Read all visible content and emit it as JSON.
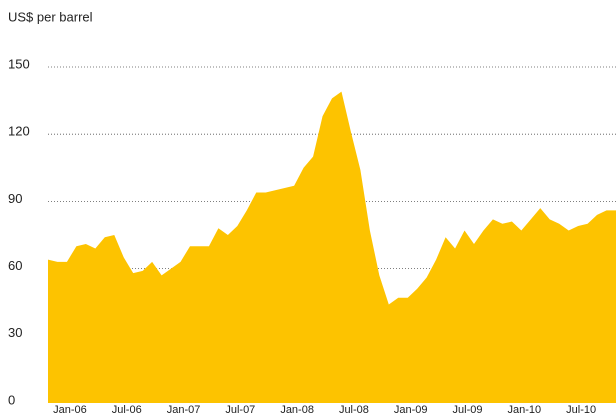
{
  "chart_data": {
    "type": "area",
    "y_label": "US$ per barrel",
    "categories": [
      null,
      null,
      "Jan-06",
      null,
      null,
      null,
      null,
      null,
      "Jul-06",
      null,
      null,
      null,
      null,
      null,
      "Jan-07",
      null,
      null,
      null,
      null,
      null,
      "Jul-07",
      null,
      null,
      null,
      null,
      null,
      "Jan-08",
      null,
      null,
      null,
      null,
      null,
      "Jul-08",
      null,
      null,
      null,
      null,
      null,
      "Jan-09",
      null,
      null,
      null,
      null,
      null,
      "Jul-09",
      null,
      null,
      null,
      null,
      null,
      "Jan-10",
      null,
      null,
      null,
      null,
      null,
      "Jul-10",
      null,
      null,
      null,
      null
    ],
    "values": [
      64,
      63,
      63,
      70,
      71,
      69,
      74,
      75,
      65,
      58,
      59,
      63,
      57,
      60,
      63,
      70,
      70,
      70,
      78,
      75,
      79,
      86,
      94,
      94,
      95,
      96,
      97,
      105,
      110,
      128,
      136,
      139,
      121,
      104,
      77,
      57,
      44,
      47,
      47,
      51,
      56,
      64,
      74,
      69,
      77,
      71,
      77,
      82,
      80,
      81,
      77,
      82,
      87,
      82,
      80,
      77,
      79,
      80,
      84,
      86,
      86
    ],
    "color": "#fdc300",
    "ylim": [
      0,
      150
    ],
    "yticks": [
      0,
      30,
      60,
      90,
      120,
      150
    ],
    "grid": true
  }
}
